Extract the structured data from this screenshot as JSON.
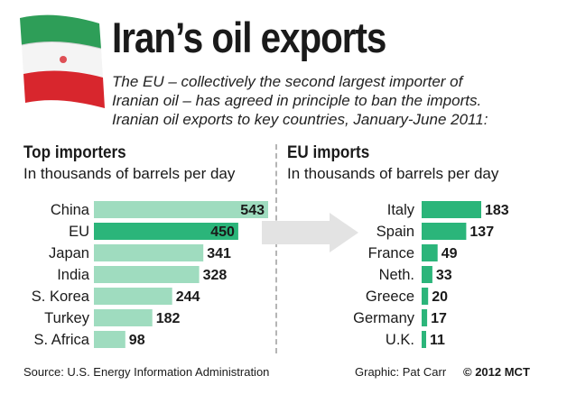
{
  "title": "Iran’s oil exports",
  "subtitle": [
    "The EU – collectively the second largest importer of",
    "Iranian oil – has agreed in principle to ban the imports.",
    "Iranian oil exports to key countries, January-June 2011:"
  ],
  "colors": {
    "light_bar": "#9fdcbf",
    "accent_bar": "#2bb57a",
    "arrow": "#e3e3e3",
    "flag_green": "#2e9e58",
    "flag_red": "#d8262d"
  },
  "chart_data": [
    {
      "type": "bar",
      "orientation": "horizontal",
      "title": "Top importers",
      "unit_label": "In thousands of barrels per day",
      "categories": [
        "China",
        "EU",
        "Japan",
        "India",
        "S. Korea",
        "Turkey",
        "S. Africa"
      ],
      "values": [
        543,
        450,
        341,
        328,
        244,
        182,
        98
      ],
      "highlight": "EU"
    },
    {
      "type": "bar",
      "orientation": "horizontal",
      "title": "EU imports",
      "unit_label": "In thousands of barrels per day",
      "categories": [
        "Italy",
        "Spain",
        "France",
        "Neth.",
        "Greece",
        "Germany",
        "U.K."
      ],
      "values": [
        183,
        137,
        49,
        33,
        20,
        17,
        11
      ]
    }
  ],
  "footer": {
    "source": "Source: U.S. Energy Information Administration",
    "graphic": "Graphic: Pat Carr",
    "copyright": "© 2012 MCT"
  }
}
